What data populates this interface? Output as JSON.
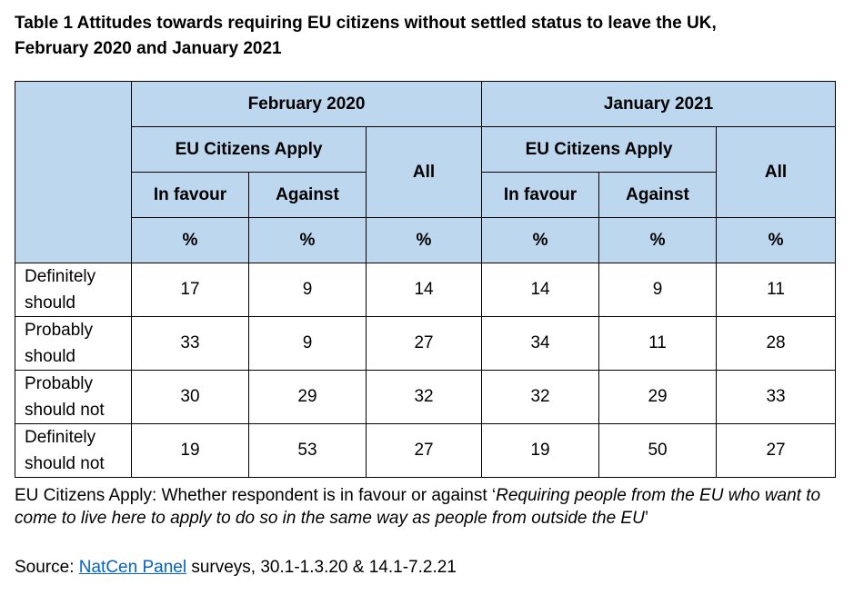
{
  "title_line1": "Table 1 Attitudes towards requiring EU citizens without settled status to leave the UK,",
  "title_line2": "February 2020 and January 2021",
  "header": {
    "period1": "February 2020",
    "period2": "January 2021",
    "group_label": "EU Citizens Apply",
    "all_label": "All",
    "in_favour": "In favour",
    "against": "Against",
    "percent": "%"
  },
  "rows": [
    {
      "label_line1": "Definitely",
      "label_line2": "should",
      "values": [
        "17",
        "9",
        "14",
        "14",
        "9",
        "11"
      ]
    },
    {
      "label_line1": "Probably",
      "label_line2": "should",
      "values": [
        "33",
        "9",
        "27",
        "34",
        "11",
        "28"
      ]
    },
    {
      "label_line1": "Probably",
      "label_line2": "should not",
      "values": [
        "30",
        "29",
        "32",
        "32",
        "29",
        "33"
      ]
    },
    {
      "label_line1": "Definitely",
      "label_line2": "should not",
      "values": [
        "19",
        "53",
        "27",
        "19",
        "50",
        "27"
      ]
    }
  ],
  "footnote": {
    "prefix": "EU Citizens Apply: Whether respondent is in favour or against ‘",
    "quote": "Requiring people from the EU who want to come to live here to apply to do so in the same way as people from outside the EU",
    "suffix": "’"
  },
  "source": {
    "prefix": "Source: ",
    "link_text": "NatCen Panel",
    "suffix": " surveys, 30.1-1.3.20 & 14.1-7.2.21"
  },
  "colors": {
    "header_fill": "#bdd7ee",
    "link": "#0563c1"
  }
}
